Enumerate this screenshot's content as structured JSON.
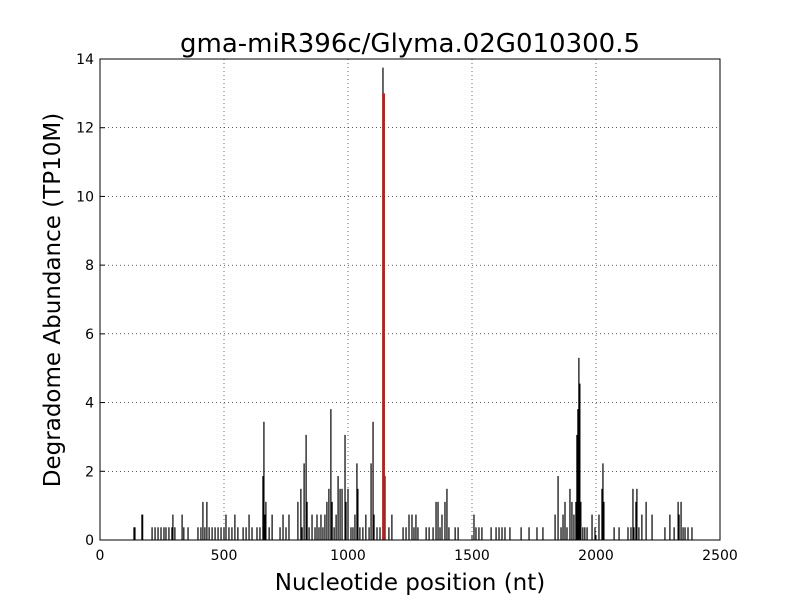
{
  "chart_data": {
    "type": "stem",
    "title": "gma-miR396c/Glyma.02G010300.5",
    "x_label": "Nucleotide position (nt)",
    "y_label": "Degradome Abundance (TP10M)",
    "xlim": [
      0,
      2500
    ],
    "xticks": [
      0,
      500,
      1000,
      1500,
      2000,
      2500
    ],
    "ylim": [
      0,
      14
    ],
    "yticks": [
      0,
      2,
      4,
      6,
      8,
      10,
      12,
      14
    ],
    "grid": true,
    "series": [
      {
        "color": "#000000",
        "x": [
          137,
          141,
          169,
          172,
          210,
          222,
          234,
          246,
          258,
          266,
          278,
          290,
          294,
          302,
          331,
          338,
          355,
          395,
          407,
          415,
          423,
          431,
          440,
          452,
          464,
          476,
          488,
          500,
          508,
          520,
          532,
          544,
          556,
          577,
          589,
          601,
          613,
          633,
          645,
          657,
          661,
          665,
          669,
          682,
          694,
          726,
          738,
          750,
          762,
          798,
          810,
          815,
          823,
          831,
          835,
          843,
          855,
          867,
          875,
          883,
          891,
          899,
          907,
          915,
          923,
          931,
          936,
          944,
          952,
          960,
          968,
          976,
          988,
          992,
          1000,
          1012,
          1020,
          1028,
          1036,
          1040,
          1048,
          1060,
          1072,
          1085,
          1093,
          1101,
          1105,
          1117,
          1129,
          1141,
          1149,
          1165,
          1177,
          1222,
          1234,
          1246,
          1258,
          1266,
          1274,
          1282,
          1315,
          1327,
          1343,
          1355,
          1363,
          1371,
          1379,
          1391,
          1399,
          1407,
          1432,
          1444,
          1508,
          1516,
          1528,
          1540,
          1577,
          1597,
          1609,
          1621,
          1633,
          1653,
          1698,
          1730,
          1762,
          1786,
          1835,
          1847,
          1859,
          1867,
          1875,
          1883,
          1895,
          1903,
          1911,
          1919,
          1923,
          1927,
          1931,
          1935,
          1939,
          1947,
          1955,
          1964,
          1984,
          1996,
          2012,
          2024,
          2028,
          2032,
          2073,
          2093,
          2129,
          2141,
          2149,
          2153,
          2161,
          2165,
          2173,
          2185,
          2202,
          2226,
          2278,
          2298,
          2315,
          2331,
          2335,
          2343,
          2351,
          2359,
          2371,
          2387
        ],
        "values": [
          0.37,
          0.37,
          0.74,
          0.74,
          0.37,
          0.37,
          0.37,
          0.37,
          0.37,
          0.37,
          0.37,
          0.37,
          0.74,
          0.37,
          0.74,
          0.37,
          0.37,
          0.37,
          0.37,
          1.11,
          0.37,
          1.11,
          0.37,
          0.37,
          0.37,
          0.37,
          0.37,
          0.37,
          0.74,
          0.37,
          0.37,
          0.74,
          0.37,
          0.37,
          0.37,
          0.74,
          0.37,
          0.37,
          0.37,
          1.86,
          3.44,
          0.74,
          1.11,
          0.37,
          0.74,
          0.37,
          0.74,
          0.37,
          0.74,
          1.11,
          1.49,
          0.37,
          2.23,
          3.06,
          1.11,
          0.37,
          0.74,
          0.37,
          0.74,
          0.37,
          0.74,
          0.37,
          0.74,
          1.11,
          1.49,
          3.81,
          1.11,
          0.37,
          0.74,
          1.86,
          1.49,
          1.49,
          3.06,
          1.11,
          1.49,
          0.37,
          0.37,
          0.74,
          2.23,
          1.49,
          0.37,
          0.37,
          0.74,
          0.37,
          2.23,
          3.44,
          0.74,
          0.37,
          0.37,
          13.75,
          1.86,
          0.37,
          0.74,
          0.37,
          0.37,
          0.74,
          0.74,
          0.37,
          0.74,
          0.37,
          0.37,
          0.37,
          0.37,
          1.11,
          1.11,
          0.37,
          0.74,
          1.11,
          1.49,
          0.37,
          0.37,
          0.37,
          0.74,
          0.37,
          0.37,
          0.37,
          0.37,
          0.37,
          0.37,
          0.37,
          0.37,
          0.37,
          0.37,
          0.37,
          0.37,
          0.37,
          0.74,
          1.86,
          0.37,
          0.74,
          1.11,
          0.37,
          1.49,
          1.11,
          0.74,
          1.11,
          3.06,
          3.81,
          5.3,
          4.55,
          1.11,
          0.37,
          0.37,
          0.37,
          0.74,
          0.37,
          0.74,
          1.49,
          2.23,
          1.11,
          0.37,
          0.37,
          0.37,
          0.37,
          1.49,
          0.37,
          1.11,
          1.49,
          0.37,
          0.74,
          1.11,
          0.74,
          0.37,
          0.74,
          0.37,
          1.11,
          0.74,
          1.11,
          0.37,
          0.37,
          0.37,
          0.37
        ]
      },
      {
        "color": "#ff0000",
        "x": [
          1145
        ],
        "values": [
          13.0
        ]
      }
    ]
  }
}
